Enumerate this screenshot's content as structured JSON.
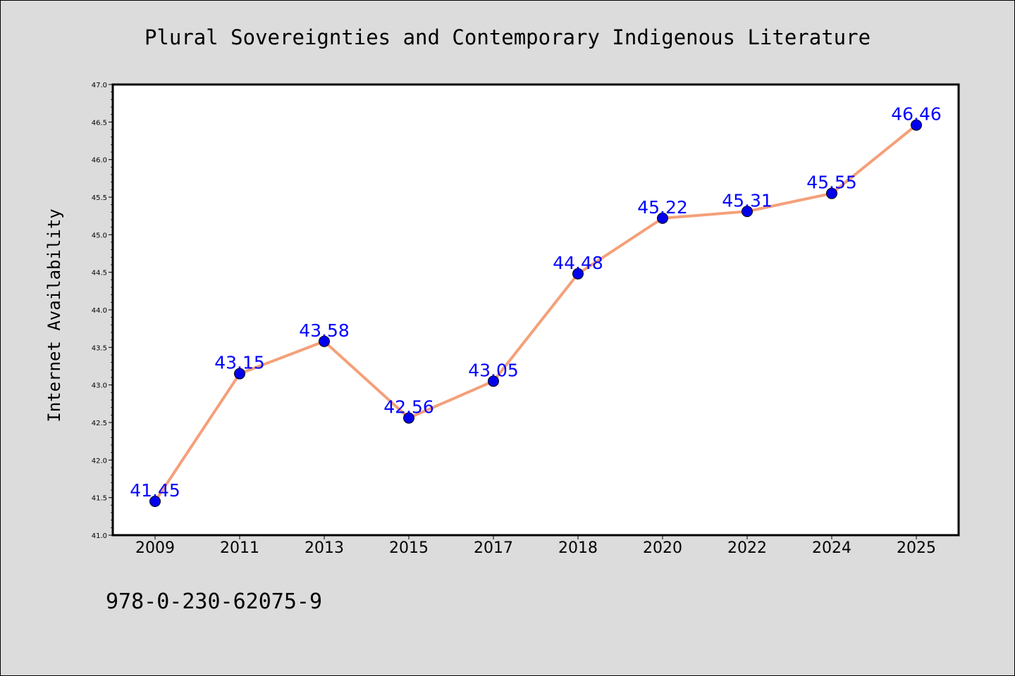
{
  "chart_data": {
    "type": "line",
    "title": "Plural Sovereignties and Contemporary Indigenous Literature",
    "xlabel": "",
    "ylabel": "Internet Availability",
    "categories": [
      "2009",
      "2011",
      "2013",
      "2015",
      "2017",
      "2018",
      "2020",
      "2022",
      "2024",
      "2025"
    ],
    "series": [
      {
        "values": [
          41.45,
          43.15,
          43.58,
          42.56,
          43.05,
          44.48,
          45.22,
          45.31,
          45.55,
          46.46
        ],
        "data_labels": [
          "41.45",
          "43.15",
          "43.58",
          "42.56",
          "43.05",
          "44.48",
          "45.22",
          "45.31",
          "45.55",
          "46.46"
        ]
      }
    ],
    "ylim": [
      41.0,
      47.0
    ],
    "yticks": [
      "41.0",
      "41.5",
      "42.0",
      "42.5",
      "43.0",
      "43.5",
      "44.0",
      "44.5",
      "45.0",
      "45.5",
      "46.0",
      "46.5",
      "47.0"
    ],
    "grid": false,
    "legend": "none",
    "colors": {
      "line": "#f4a07a",
      "marker": "#0000ee",
      "data_label": "#0000ff",
      "plot_background": "#ffffff",
      "page_background": "#dcdcdc"
    }
  },
  "footer": {
    "isbn": "978-0-230-62075-9"
  }
}
